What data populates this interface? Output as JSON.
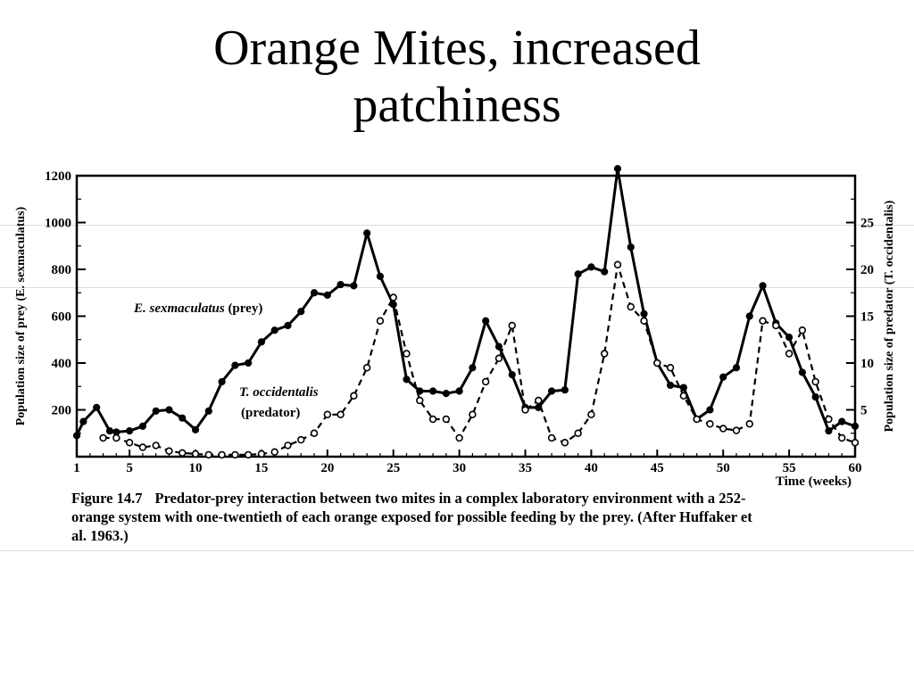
{
  "slide": {
    "title_line1": "Orange Mites, increased",
    "title_line2": "patchiness"
  },
  "caption": {
    "figure_label": "Figure 14.7",
    "text": "Predator-prey interaction between two mites in a complex laboratory environment with a 252-orange system with one-twentieth of each orange exposed for possible feeding by the prey. (After Huffaker et al. 1963.)"
  },
  "chart_data": {
    "type": "line",
    "xlabel": "Time (weeks)",
    "ylabel_left": "Population size of prey (E. sexmaculatus)",
    "ylabel_right": "Population size of predator (T. occidentalis)",
    "xlim": [
      1,
      60
    ],
    "ylim_left": [
      0,
      1200
    ],
    "ylim_right": [
      0,
      30
    ],
    "x_ticks": [
      1,
      5,
      10,
      15,
      20,
      25,
      30,
      35,
      40,
      45,
      50,
      55,
      60
    ],
    "y_ticks_left": [
      200,
      400,
      600,
      800,
      1000,
      1200
    ],
    "y_ticks_right": [
      5,
      10,
      15,
      20,
      25
    ],
    "series": [
      {
        "name": "E. sexmaculatus (prey)",
        "label_line1": "E. sexmaculatus",
        "label_line2": "(prey)",
        "axis": "left",
        "style": "solid",
        "marker": "filled-circle",
        "x": [
          1,
          1.5,
          2.5,
          3.5,
          4,
          5,
          6,
          7,
          8,
          9,
          10,
          11,
          12,
          13,
          14,
          15,
          16,
          17,
          18,
          19,
          20,
          21,
          22,
          23,
          24,
          25,
          26,
          27,
          28,
          29,
          30,
          31,
          32,
          33,
          34,
          35,
          36,
          37,
          38,
          39,
          40,
          41,
          42,
          43,
          44,
          45,
          46,
          47,
          48,
          49,
          50,
          51,
          52,
          53,
          54,
          55,
          56,
          57,
          58,
          59,
          60
        ],
        "y": [
          90,
          150,
          210,
          110,
          105,
          110,
          130,
          195,
          200,
          165,
          115,
          195,
          320,
          390,
          400,
          490,
          540,
          560,
          620,
          700,
          690,
          735,
          730,
          955,
          770,
          650,
          330,
          280,
          280,
          270,
          280,
          380,
          580,
          470,
          350,
          210,
          210,
          280,
          285,
          780,
          810,
          790,
          1230,
          895,
          610,
          400,
          305,
          295,
          160,
          200,
          340,
          380,
          600,
          730,
          570,
          510,
          360,
          255,
          110,
          150,
          130
        ]
      },
      {
        "name": "T. occidentalis (predator)",
        "label_line1": "T. occidentalis",
        "label_line2": "(predator)",
        "axis": "right",
        "style": "dashed",
        "marker": "open-circle",
        "x": [
          3,
          4,
          5,
          6,
          7,
          8,
          9,
          10,
          11,
          12,
          13,
          14,
          15,
          16,
          17,
          18,
          19,
          20,
          21,
          22,
          23,
          24,
          25,
          26,
          27,
          28,
          29,
          30,
          31,
          32,
          33,
          34,
          35,
          36,
          37,
          38,
          39,
          40,
          41,
          42,
          43,
          44,
          45,
          46,
          47,
          48,
          49,
          50,
          51,
          52,
          53,
          54,
          55,
          56,
          57,
          58,
          59,
          60
        ],
        "y": [
          2,
          2,
          1.5,
          1,
          1.2,
          0.6,
          0.4,
          0.3,
          0.2,
          0.2,
          0.2,
          0.2,
          0.3,
          0.5,
          1.2,
          1.8,
          2.5,
          4.5,
          4.5,
          6.5,
          9.5,
          14.5,
          17,
          11,
          6,
          4,
          4,
          2,
          4.5,
          8,
          10.5,
          14,
          5,
          6,
          2,
          1.5,
          2.5,
          4.5,
          11,
          20.5,
          16,
          14.5,
          10,
          9.5,
          6.5,
          4,
          3.5,
          3,
          2.8,
          3.5,
          14.5,
          14,
          11,
          13.5,
          8,
          4,
          2,
          1.5
        ]
      }
    ]
  }
}
